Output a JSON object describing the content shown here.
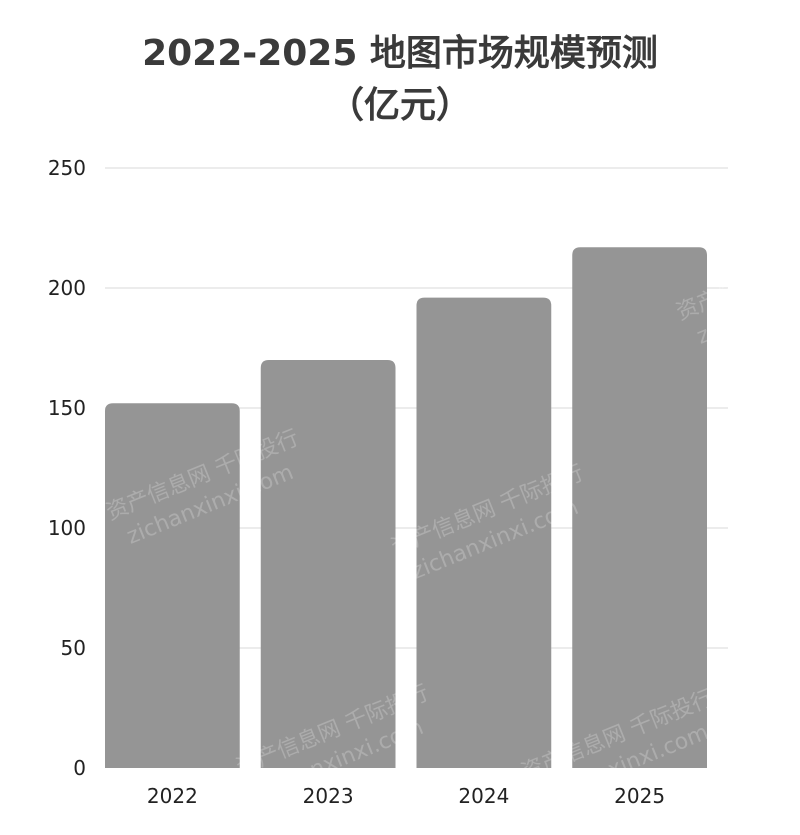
{
  "chart_data": {
    "type": "bar",
    "title_line1": "2022-2025 地图市场规模预测",
    "title_line2": "（亿元）",
    "categories": [
      "2022",
      "2023",
      "2024",
      "2025"
    ],
    "values": [
      152,
      170,
      196,
      217
    ],
    "ylim": [
      0,
      250
    ],
    "yticks": [
      0,
      50,
      100,
      150,
      200,
      250
    ],
    "grid": true,
    "bar_color": "#959595",
    "grid_color": "#d9d9d9"
  },
  "watermark": {
    "line1": "资产信息网 千际投行",
    "line2": "zichanxinxi.com"
  }
}
